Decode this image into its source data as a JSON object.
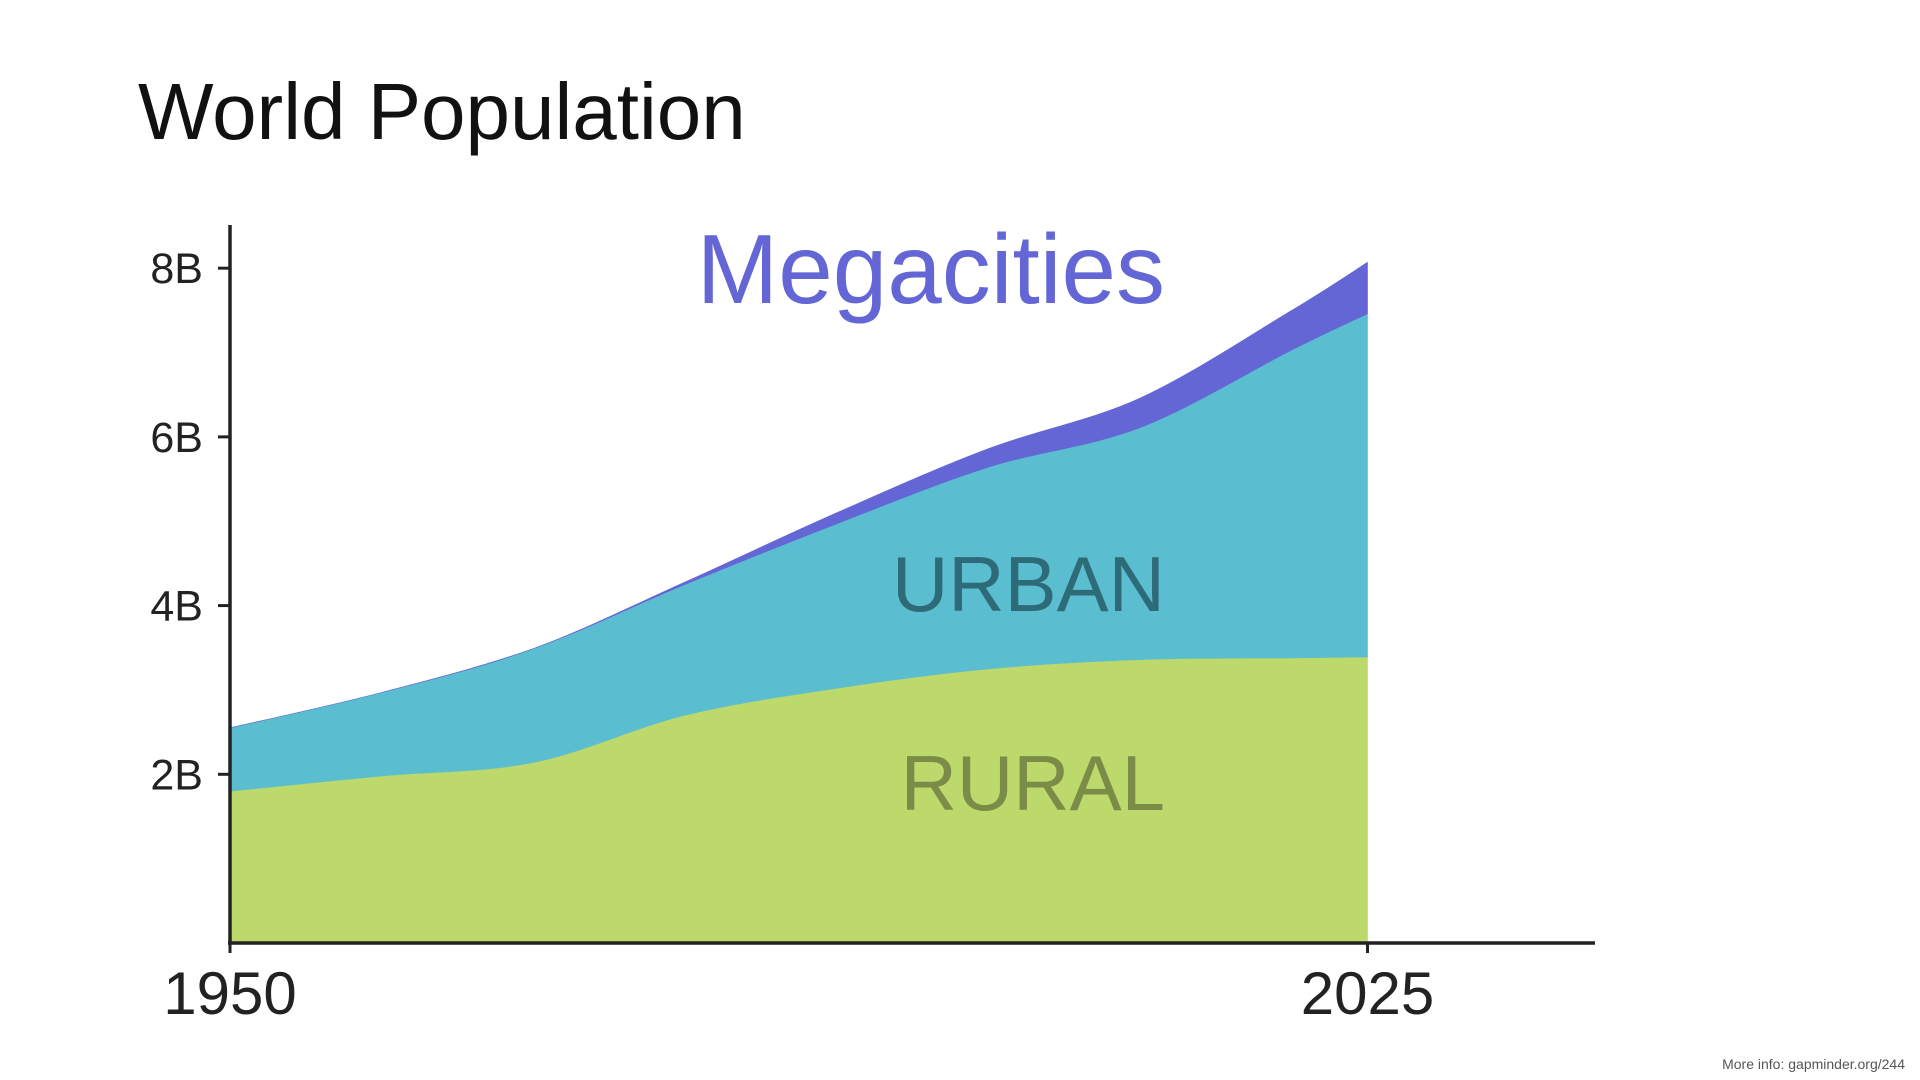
{
  "title": "World Population",
  "footnote": "More info: gapminder.org/244",
  "chart_data": {
    "type": "area",
    "stacked": true,
    "title": "World Population",
    "xlabel": "",
    "ylabel": "",
    "x": [
      1950,
      1960,
      1970,
      1980,
      1990,
      2000,
      2010,
      2020,
      2025
    ],
    "xlim": [
      1950,
      2040
    ],
    "ylim": [
      0,
      8500000000
    ],
    "xticks": [
      1950,
      2025
    ],
    "xtick_labels": [
      "1950",
      "2025"
    ],
    "yticks": [
      2000000000,
      4000000000,
      6000000000,
      8000000000
    ],
    "ytick_labels": [
      "2B",
      "4B",
      "6B",
      "8B"
    ],
    "grid": false,
    "legend": "none",
    "series": [
      {
        "name": "RURAL",
        "color": "#bdd86b",
        "label_color": "#7b8b48",
        "values": [
          1800000000,
          1980000000,
          2140000000,
          2700000000,
          3020000000,
          3250000000,
          3360000000,
          3380000000,
          3390000000
        ]
      },
      {
        "name": "URBAN",
        "color": "#5bbdd0",
        "label_color": "#2e6b78",
        "values": [
          750000000,
          990000000,
          1350000000,
          1550000000,
          1950000000,
          2390000000,
          2750000000,
          3650000000,
          4070000000
        ]
      },
      {
        "name": "Megacities",
        "color": "#6366d4",
        "label_color": "#6366d4",
        "values": [
          0,
          0,
          0,
          30000000,
          130000000,
          220000000,
          350000000,
          470000000,
          610000000
        ]
      }
    ]
  }
}
